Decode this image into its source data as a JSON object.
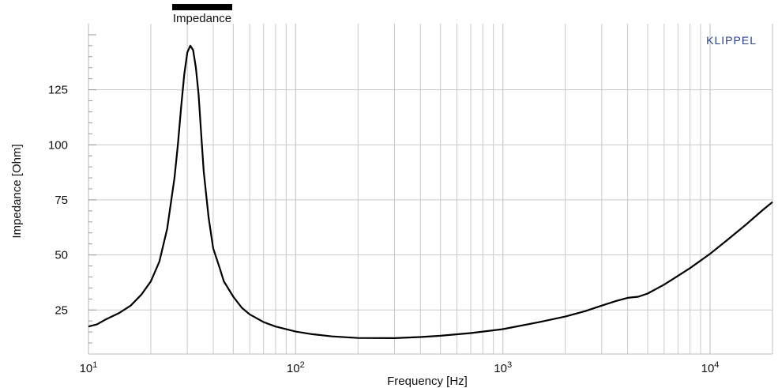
{
  "chart_data": {
    "type": "line",
    "title": "",
    "brand": "KLIPPEL",
    "xlabel": "Frequency  [Hz]",
    "ylabel": "Impedance [Ohm]",
    "xscale": "log",
    "xlim": [
      10,
      20000
    ],
    "ylim": [
      5,
      155
    ],
    "grid": true,
    "legend_position": "top-left",
    "x_ticks": [
      {
        "value": 10,
        "base": "10",
        "exp": "1"
      },
      {
        "value": 100,
        "base": "10",
        "exp": "2"
      },
      {
        "value": 1000,
        "base": "10",
        "exp": "3"
      },
      {
        "value": 10000,
        "base": "10",
        "exp": "4"
      }
    ],
    "y_ticks": [
      25,
      50,
      75,
      100,
      125
    ],
    "series": [
      {
        "name": "Impedance",
        "color": "#000000",
        "x": [
          10,
          11,
          12,
          14,
          16,
          18,
          20,
          22,
          24,
          26,
          27,
          28,
          29,
          30,
          31,
          32,
          33,
          34,
          35,
          36,
          38,
          40,
          43,
          45,
          50,
          55,
          60,
          70,
          80,
          100,
          120,
          150,
          200,
          300,
          400,
          500,
          700,
          1000,
          1500,
          2000,
          2500,
          3000,
          3500,
          4000,
          4500,
          5000,
          6000,
          7000,
          8000,
          10000,
          12000,
          15000,
          18000,
          20000
        ],
        "y": [
          17.5,
          18.5,
          20.5,
          23.5,
          27,
          32,
          38,
          47,
          62,
          85,
          100,
          117,
          132,
          142,
          145,
          143,
          135,
          123,
          105,
          88,
          67,
          53,
          44,
          38,
          31,
          26,
          23,
          19.5,
          17.5,
          15.2,
          14,
          13,
          12.3,
          12.2,
          12.7,
          13.3,
          14.5,
          16.3,
          19.5,
          22,
          24.5,
          27,
          29,
          30.5,
          31,
          32.5,
          36.5,
          40.5,
          44,
          50.5,
          56.5,
          64,
          70.5,
          74
        ]
      }
    ]
  }
}
